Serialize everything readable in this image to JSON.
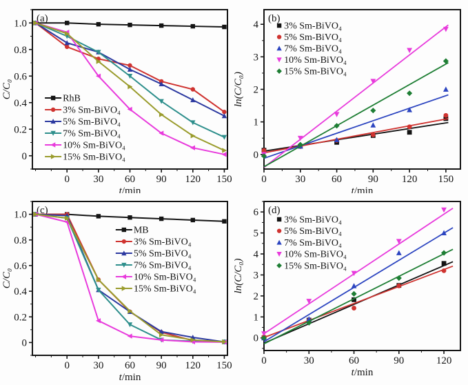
{
  "figure": {
    "background": "#fdfdfd",
    "axis_color": "#141414"
  },
  "chart_data": [
    {
      "id": "a",
      "panel_label": "(a)",
      "type": "line",
      "xlabel": "t/min",
      "ylabel": "C/C₀",
      "xlim": [
        -33,
        153
      ],
      "ylim": [
        -0.1,
        1.1
      ],
      "xticks": [
        0,
        30,
        60,
        90,
        120,
        150
      ],
      "xtick_labels": [
        "0",
        "30",
        "60",
        "90",
        "120",
        "150"
      ],
      "xminor": 15,
      "yticks": [
        0,
        0.2,
        0.4,
        0.6,
        0.8,
        1.0
      ],
      "ytick_labels": [
        "0",
        "0.2",
        "0.4",
        "0.6",
        "0.8",
        "1.0"
      ],
      "yminor": 0.1,
      "legend": {
        "style": "line-marker",
        "x": 0.064,
        "y": 0.554,
        "lh": 17
      },
      "x": [
        -30,
        0,
        30,
        60,
        90,
        120,
        150
      ],
      "series": [
        {
          "name": "RhB",
          "color": "#141414",
          "marker": "square",
          "values": [
            1.0,
            1.0,
            0.99,
            0.985,
            0.98,
            0.975,
            0.97
          ]
        },
        {
          "name": "3% Sm-BiVO₄",
          "color": "#cf3330",
          "marker": "circle",
          "values": [
            1.0,
            0.82,
            0.73,
            0.68,
            0.56,
            0.5,
            0.33
          ]
        },
        {
          "name": "5% Sm-BiVO₄",
          "color": "#2c39a0",
          "marker": "triangle-up",
          "values": [
            1.0,
            0.85,
            0.78,
            0.65,
            0.54,
            0.42,
            0.3
          ]
        },
        {
          "name": "7% Sm-BiVO₄",
          "color": "#2e8f8c",
          "marker": "triangle-down",
          "values": [
            1.0,
            0.9,
            0.78,
            0.6,
            0.41,
            0.25,
            0.14
          ]
        },
        {
          "name": "10% Sm-BiVO₄",
          "color": "#e83bdc",
          "marker": "triangle-left",
          "values": [
            1.0,
            0.93,
            0.6,
            0.35,
            0.17,
            0.06,
            0.01
          ]
        },
        {
          "name": "15% Sm-BiVO₄",
          "color": "#9a9c2d",
          "marker": "triangle-right",
          "values": [
            1.0,
            0.92,
            0.71,
            0.52,
            0.31,
            0.15,
            0.04
          ]
        }
      ]
    },
    {
      "id": "b",
      "panel_label": "(b)",
      "type": "scatter-fit",
      "xlabel": "t/min",
      "ylabel": "ln(C/C₀)",
      "xlim": [
        0,
        162
      ],
      "ylim": [
        -0.45,
        4.45
      ],
      "xticks": [
        0,
        30,
        60,
        90,
        120,
        150
      ],
      "xtick_labels": [
        "0",
        "30",
        "60",
        "90",
        "120",
        "150"
      ],
      "xminor": 15,
      "yticks": [
        0,
        1,
        2,
        3,
        4
      ],
      "ytick_labels": [
        "0",
        "1",
        "2",
        "3",
        "4"
      ],
      "yminor": 0.5,
      "legend": {
        "style": "marker",
        "x": 0.06,
        "y": 0.1,
        "lh": 16.5
      },
      "x": [
        0,
        30,
        60,
        90,
        120,
        150
      ],
      "series": [
        {
          "name": "3% Sm-BiVO₄",
          "color": "#141414",
          "marker": "square",
          "values": [
            0.13,
            0.25,
            0.37,
            0.58,
            0.68,
            1.1
          ],
          "fit": {
            "x": [
              0,
              152
            ],
            "y": [
              0.1,
              0.98
            ]
          }
        },
        {
          "name": "5% Sm-BiVO₄",
          "color": "#cf3330",
          "marker": "circle",
          "values": [
            0.12,
            0.24,
            0.43,
            0.6,
            0.85,
            1.2
          ],
          "fit": {
            "x": [
              0,
              152
            ],
            "y": [
              0.05,
              1.1
            ]
          }
        },
        {
          "name": "7% Sm-BiVO₄",
          "color": "#2c45c0",
          "marker": "triangle-up",
          "values": [
            0.0,
            0.25,
            0.45,
            0.9,
            1.37,
            2.0
          ],
          "fit": {
            "x": [
              0,
              152
            ],
            "y": [
              -0.12,
              1.83
            ]
          }
        },
        {
          "name": "10% Sm-BiVO₄",
          "color": "#e83bdc",
          "marker": "triangle-down",
          "values": [
            0.0,
            0.5,
            1.23,
            2.25,
            3.2,
            3.85
          ],
          "fit": {
            "x": [
              0,
              152
            ],
            "y": [
              -0.4,
              3.98
            ]
          }
        },
        {
          "name": "15% Sm-BiVO₄",
          "color": "#1e7e34",
          "marker": "diamond",
          "values": [
            -0.05,
            0.3,
            0.88,
            1.35,
            1.88,
            2.87
          ],
          "fit": {
            "x": [
              0,
              152
            ],
            "y": [
              -0.38,
              2.82
            ]
          }
        }
      ]
    },
    {
      "id": "c",
      "panel_label": "(c)",
      "type": "line",
      "xlabel": "t/min",
      "ylabel": "C/C₀",
      "xlim": [
        -33,
        153
      ],
      "ylim": [
        -0.1,
        1.1
      ],
      "xticks": [
        0,
        30,
        60,
        90,
        120,
        150
      ],
      "xtick_labels": [
        "0",
        "30",
        "60",
        "90",
        "120",
        "150"
      ],
      "xminor": 15,
      "yticks": [
        0,
        0.2,
        0.4,
        0.6,
        0.8,
        1.0
      ],
      "ytick_labels": [
        "0",
        "0.2",
        "0.4",
        "0.6",
        "0.8",
        "1.0"
      ],
      "yminor": 0.1,
      "legend": {
        "style": "line-marker",
        "x": 0.427,
        "y": 0.184,
        "lh": 17
      },
      "x": [
        -30,
        0,
        30,
        60,
        90,
        120,
        150
      ],
      "series": [
        {
          "name": "MB",
          "color": "#141414",
          "marker": "square",
          "values": [
            1.0,
            1.0,
            0.985,
            0.975,
            0.965,
            0.955,
            0.945
          ]
        },
        {
          "name": "3% Sm-BiVO₄",
          "color": "#cf3330",
          "marker": "circle",
          "values": [
            1.0,
            1.0,
            0.49,
            0.24,
            0.08,
            0.015,
            0.005
          ]
        },
        {
          "name": "5% Sm-BiVO₄",
          "color": "#2c39a0",
          "marker": "triangle-up",
          "values": [
            1.0,
            0.99,
            0.41,
            0.24,
            0.085,
            0.04,
            0.005
          ]
        },
        {
          "name": "7% Sm-BiVO₄",
          "color": "#2e8f8c",
          "marker": "triangle-down",
          "values": [
            1.0,
            0.97,
            0.41,
            0.14,
            0.02,
            0.01,
            0.005
          ]
        },
        {
          "name": "10% Sm-BiVO₄",
          "color": "#e83bdc",
          "marker": "triangle-left",
          "values": [
            1.0,
            0.94,
            0.17,
            0.05,
            0.02,
            0.005,
            0.003
          ]
        },
        {
          "name": "15% Sm-BiVO₄",
          "color": "#9a9c2d",
          "marker": "triangle-right",
          "values": [
            1.0,
            0.97,
            0.49,
            0.245,
            0.06,
            0.02,
            0.005
          ]
        }
      ]
    },
    {
      "id": "d",
      "panel_label": "(d)",
      "type": "scatter-fit",
      "xlabel": "t/min",
      "ylabel": "ln(C/C₀)",
      "xlim": [
        0,
        131
      ],
      "ylim": [
        -0.6,
        6.5
      ],
      "xticks": [
        0,
        30,
        60,
        90,
        120
      ],
      "xtick_labels": [
        "0",
        "30",
        "60",
        "90",
        "120"
      ],
      "xminor": 15,
      "yticks": [
        0,
        1,
        2,
        3,
        4,
        5,
        6
      ],
      "ytick_labels": [
        "0",
        "1",
        "2",
        "3",
        "4",
        "5",
        "6"
      ],
      "yminor": 0.5,
      "legend": {
        "style": "marker",
        "x": 0.06,
        "y": 0.12,
        "lh": 16.75
      },
      "x": [
        0,
        30,
        60,
        90,
        120
      ],
      "series": [
        {
          "name": "3% Sm-BiVO₄",
          "color": "#141414",
          "marker": "square",
          "values": [
            0.0,
            0.85,
            1.82,
            2.5,
            3.55
          ],
          "fit": {
            "x": [
              0,
              126
            ],
            "y": [
              -0.25,
              3.63
            ]
          }
        },
        {
          "name": "5% Sm-BiVO₄",
          "color": "#cf3330",
          "marker": "circle",
          "values": [
            0.05,
            0.85,
            1.42,
            2.48,
            3.2
          ],
          "fit": {
            "x": [
              0,
              126
            ],
            "y": [
              0.02,
              3.42
            ]
          }
        },
        {
          "name": "7% Sm-BiVO₄",
          "color": "#2c45c0",
          "marker": "triangle-up",
          "values": [
            0.0,
            0.9,
            2.48,
            4.05,
            5.0
          ],
          "fit": {
            "x": [
              0,
              126
            ],
            "y": [
              -0.18,
              5.25
            ]
          }
        },
        {
          "name": "10% Sm-BiVO₄",
          "color": "#e83bdc",
          "marker": "triangle-down",
          "values": [
            0.2,
            1.75,
            3.08,
            4.6,
            6.1
          ],
          "fit": {
            "x": [
              0,
              126
            ],
            "y": [
              0.2,
              6.18
            ]
          }
        },
        {
          "name": "15% Sm-BiVO₄",
          "color": "#1e7e34",
          "marker": "diamond",
          "values": [
            0.0,
            0.72,
            2.1,
            2.85,
            4.05
          ],
          "fit": {
            "x": [
              0,
              126
            ],
            "y": [
              -0.28,
              4.22
            ]
          }
        }
      ]
    }
  ]
}
